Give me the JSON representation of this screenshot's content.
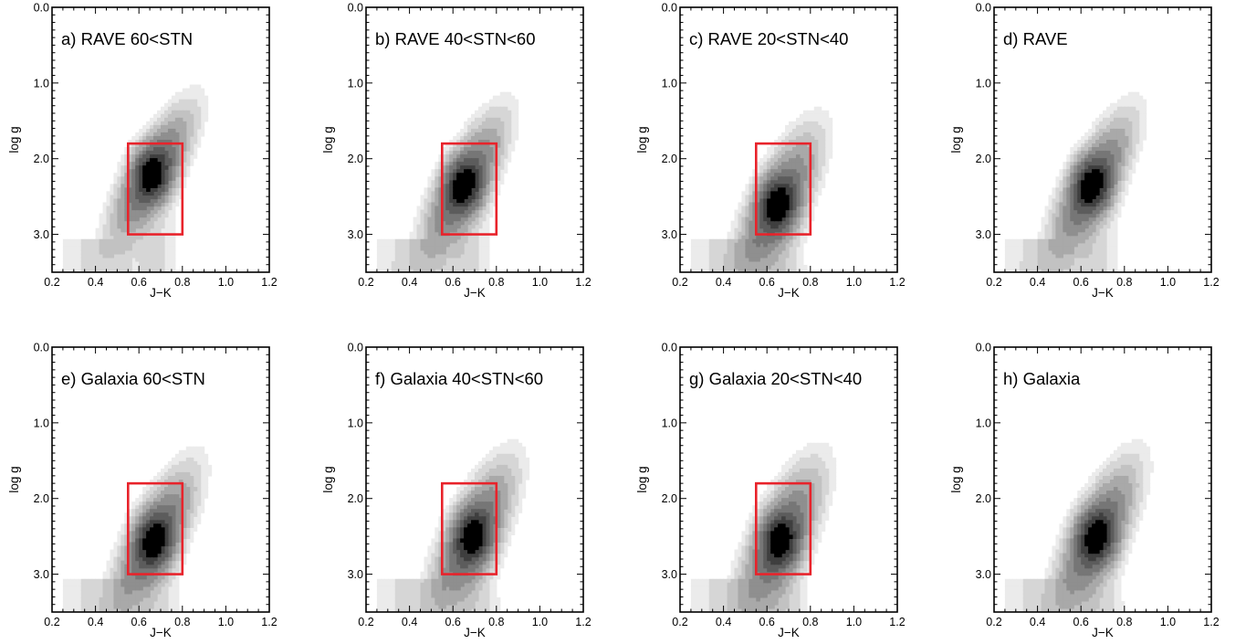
{
  "figure": {
    "colors": {
      "axes": "#000000",
      "selection_box": "#e8232b",
      "contour_levels": [
        "#ebebeb",
        "#d6d6d6",
        "#c2c2c2",
        "#a9a9a9",
        "#8f8f8f",
        "#767676",
        "#5c5c5c",
        "#3f3f3f",
        "#000000"
      ]
    }
  },
  "chart_data": [
    {
      "id": "a",
      "type": "contour",
      "title": "a) RAVE 60<STN",
      "xlabel": "J−K",
      "ylabel": "log g",
      "xlim": [
        0.2,
        1.2
      ],
      "ylim": [
        3.5,
        0.0
      ],
      "y_inverted": true,
      "xticks": [
        "0.2",
        "0.4",
        "0.6",
        "0.8",
        "1.0",
        "1.2"
      ],
      "yticks": [
        "0.0",
        "1.0",
        "2.0",
        "3.0"
      ],
      "selection_box": {
        "x": [
          0.55,
          0.8
        ],
        "y": [
          1.8,
          3.0
        ]
      },
      "peak": {
        "x": 0.66,
        "logg": 2.2
      },
      "ridge_slope": 3.5,
      "spread": 0.85,
      "low_branch": 0.42
    },
    {
      "id": "b",
      "type": "contour",
      "title": "b) RAVE 40<STN<60",
      "xlabel": "J−K",
      "ylabel": "log g",
      "xlim": [
        0.2,
        1.2
      ],
      "ylim": [
        3.5,
        0.0
      ],
      "y_inverted": true,
      "xticks": [
        "0.2",
        "0.4",
        "0.6",
        "0.8",
        "1.0",
        "1.2"
      ],
      "yticks": [
        "0.0",
        "1.0",
        "2.0",
        "3.0"
      ],
      "selection_box": {
        "x": [
          0.55,
          0.8
        ],
        "y": [
          1.8,
          3.0
        ]
      },
      "peak": {
        "x": 0.65,
        "logg": 2.35
      },
      "ridge_slope": 3.6,
      "spread": 0.9,
      "low_branch": 0.5
    },
    {
      "id": "c",
      "type": "contour",
      "title": "c) RAVE 20<STN<40",
      "xlabel": "J−K",
      "ylabel": "log g",
      "xlim": [
        0.2,
        1.2
      ],
      "ylim": [
        3.5,
        0.0
      ],
      "y_inverted": true,
      "xticks": [
        "0.2",
        "0.4",
        "0.6",
        "0.8",
        "1.0",
        "1.2"
      ],
      "yticks": [
        "0.0",
        "1.0",
        "2.0",
        "3.0"
      ],
      "selection_box": {
        "x": [
          0.55,
          0.8
        ],
        "y": [
          1.8,
          3.0
        ]
      },
      "peak": {
        "x": 0.65,
        "logg": 2.6
      },
      "ridge_slope": 3.6,
      "spread": 1.0,
      "low_branch": 0.55
    },
    {
      "id": "d",
      "type": "contour",
      "title": "d) RAVE",
      "xlabel": "J−K",
      "ylabel": "log g",
      "xlim": [
        0.2,
        1.2
      ],
      "ylim": [
        3.5,
        0.0
      ],
      "y_inverted": true,
      "xticks": [
        "0.2",
        "0.4",
        "0.6",
        "0.8",
        "1.0",
        "1.2"
      ],
      "yticks": [
        "0.0",
        "1.0",
        "2.0",
        "3.0"
      ],
      "selection_box": null,
      "peak": {
        "x": 0.65,
        "logg": 2.35
      },
      "ridge_slope": 3.6,
      "spread": 0.9,
      "low_branch": 0.5
    },
    {
      "id": "e",
      "type": "contour",
      "title": "e) Galaxia 60<STN",
      "xlabel": "J−K",
      "ylabel": "log g",
      "xlim": [
        0.2,
        1.2
      ],
      "ylim": [
        3.5,
        0.0
      ],
      "y_inverted": true,
      "xticks": [
        "0.2",
        "0.4",
        "0.6",
        "0.8",
        "1.0",
        "1.2"
      ],
      "yticks": [
        "0.0",
        "1.0",
        "2.0",
        "3.0"
      ],
      "selection_box": {
        "x": [
          0.55,
          0.8
        ],
        "y": [
          1.8,
          3.0
        ]
      },
      "peak": {
        "x": 0.67,
        "logg": 2.55
      },
      "ridge_slope": 3.6,
      "spread": 0.95,
      "low_branch": 0.45
    },
    {
      "id": "f",
      "type": "contour",
      "title": "f) Galaxia 40<STN<60",
      "xlabel": "J−K",
      "ylabel": "log g",
      "xlim": [
        0.2,
        1.2
      ],
      "ylim": [
        3.5,
        0.0
      ],
      "y_inverted": true,
      "xticks": [
        "0.2",
        "0.4",
        "0.6",
        "0.8",
        "1.0",
        "1.2"
      ],
      "yticks": [
        "0.0",
        "1.0",
        "2.0",
        "3.0"
      ],
      "selection_box": {
        "x": [
          0.55,
          0.8
        ],
        "y": [
          1.8,
          3.0
        ]
      },
      "peak": {
        "x": 0.69,
        "logg": 2.5
      },
      "ridge_slope": 3.6,
      "spread": 1.0,
      "low_branch": 0.5
    },
    {
      "id": "g",
      "type": "contour",
      "title": "g) Galaxia 20<STN<40",
      "xlabel": "J−K",
      "ylabel": "log g",
      "xlim": [
        0.2,
        1.2
      ],
      "ylim": [
        3.5,
        0.0
      ],
      "y_inverted": true,
      "xticks": [
        "0.2",
        "0.4",
        "0.6",
        "0.8",
        "1.0",
        "1.2"
      ],
      "yticks": [
        "0.0",
        "1.0",
        "2.0",
        "3.0"
      ],
      "selection_box": {
        "x": [
          0.55,
          0.8
        ],
        "y": [
          1.8,
          3.0
        ]
      },
      "peak": {
        "x": 0.66,
        "logg": 2.55
      },
      "ridge_slope": 3.6,
      "spread": 1.05,
      "low_branch": 0.55
    },
    {
      "id": "h",
      "type": "contour",
      "title": "h) Galaxia",
      "xlabel": "J−K",
      "ylabel": "log g",
      "xlim": [
        0.2,
        1.2
      ],
      "ylim": [
        3.5,
        0.0
      ],
      "y_inverted": true,
      "xticks": [
        "0.2",
        "0.4",
        "0.6",
        "0.8",
        "1.0",
        "1.2"
      ],
      "yticks": [
        "0.0",
        "1.0",
        "2.0",
        "3.0"
      ],
      "selection_box": null,
      "peak": {
        "x": 0.67,
        "logg": 2.5
      },
      "ridge_slope": 3.6,
      "spread": 1.0,
      "low_branch": 0.5
    }
  ]
}
